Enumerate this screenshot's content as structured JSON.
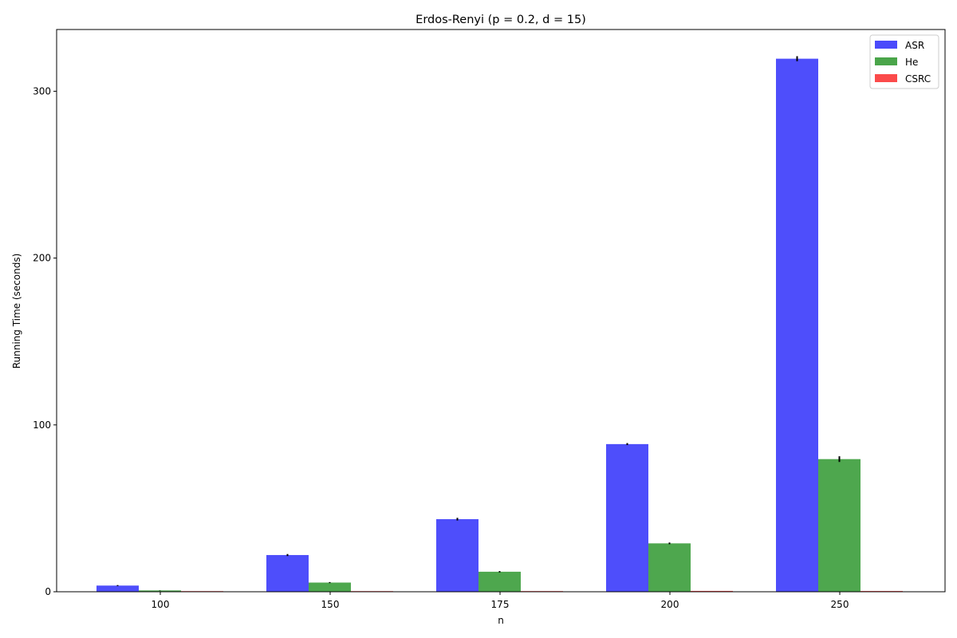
{
  "chart_data": {
    "type": "bar",
    "title": "Erdos-Renyi (p = 0.2, d = 15)",
    "xlabel": "n",
    "ylabel": "Running Time (seconds)",
    "categories": [
      "100",
      "150",
      "175",
      "200",
      "250"
    ],
    "ylim": [
      0,
      337
    ],
    "yticks": [
      0,
      100,
      200,
      300
    ],
    "grid": false,
    "legend_position": "top-right",
    "series": [
      {
        "name": "ASR",
        "color": "#4a4afb",
        "values": [
          3.7,
          22,
          43.5,
          88.5,
          319.5
        ],
        "errors": [
          0.3,
          0.6,
          0.8,
          0.6,
          1.5
        ]
      },
      {
        "name": "He",
        "color": "#4aa54a",
        "values": [
          0.8,
          5.5,
          12,
          29,
          79.5
        ],
        "errors": [
          0.1,
          0.3,
          0.4,
          0.5,
          1.7
        ]
      },
      {
        "name": "CSRC",
        "color": "#fb4a4a",
        "values": [
          0.05,
          0.15,
          0.4,
          0.5,
          0.45
        ],
        "errors": [
          0,
          0,
          0,
          0,
          0
        ]
      }
    ]
  }
}
